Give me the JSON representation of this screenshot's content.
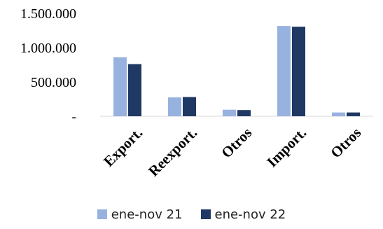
{
  "chart_data": {
    "type": "bar",
    "categories": [
      "Export.",
      "Reexport.",
      "Otros",
      "Import.",
      "Otros"
    ],
    "series": [
      {
        "name": "ene-nov 21",
        "values": [
          860000,
          275000,
          95000,
          1315000,
          55000
        ],
        "color": "#98b2e0"
      },
      {
        "name": "ene-nov 22",
        "values": [
          760000,
          280000,
          90000,
          1305000,
          55000
        ],
        "color": "#1f3864"
      }
    ],
    "yticks": [
      {
        "value": 0,
        "label": "-"
      },
      {
        "value": 500000,
        "label": "500.000"
      },
      {
        "value": 1000000,
        "label": "1.000.000"
      },
      {
        "value": 1500000,
        "label": "1.500.000"
      }
    ],
    "ylim": [
      0,
      1500000
    ],
    "grid": false,
    "legend_position": "bottom",
    "title": "",
    "xlabel": "",
    "ylabel": ""
  }
}
